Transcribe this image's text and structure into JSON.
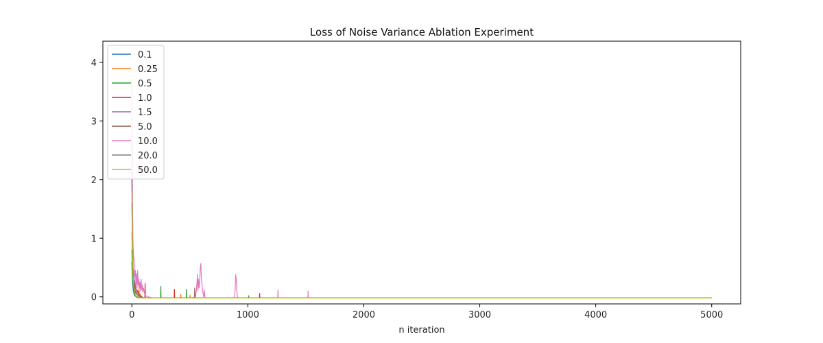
{
  "chart_data": {
    "type": "line",
    "title": "Loss of Noise Variance Ablation Experiment",
    "xlabel": "n iteration",
    "ylabel": "",
    "xlim": [
      -250,
      5250
    ],
    "ylim": [
      -0.12,
      4.36
    ],
    "xticks": [
      0,
      1000,
      2000,
      3000,
      4000,
      5000
    ],
    "yticks": [
      0,
      1,
      2,
      3,
      4
    ],
    "grid": false,
    "legend_position": "top-left",
    "series": [
      {
        "name": "0.1",
        "color": "#1f77b4",
        "x": [
          0,
          3,
          6,
          10,
          15,
          20,
          30,
          40,
          50,
          60,
          80,
          100,
          5000
        ],
        "y": [
          0.6,
          0.4,
          0.25,
          0.15,
          0.08,
          0.04,
          0.01,
          0.0,
          -0.01,
          -0.02,
          -0.02,
          -0.02,
          -0.02
        ]
      },
      {
        "name": "0.25",
        "color": "#ff7f0e",
        "x": [
          0,
          5,
          10,
          20,
          30,
          40,
          50,
          60,
          62,
          64,
          70,
          80,
          90,
          100,
          420,
          422,
          424,
          500,
          502,
          504,
          5000
        ],
        "y": [
          1.1,
          0.6,
          0.3,
          0.15,
          0.08,
          0.06,
          0.1,
          0.08,
          0.2,
          0.02,
          0.05,
          0.02,
          0.0,
          -0.02,
          -0.02,
          0.04,
          -0.02,
          -0.02,
          0.03,
          -0.02,
          -0.02
        ]
      },
      {
        "name": "0.5",
        "color": "#2ca02c",
        "x": [
          0,
          5,
          10,
          20,
          30,
          40,
          60,
          80,
          248,
          250,
          252,
          468,
          470,
          472,
          1005,
          1007,
          1009,
          5000
        ],
        "y": [
          0.8,
          0.4,
          0.2,
          0.08,
          0.02,
          -0.01,
          -0.02,
          -0.02,
          -0.02,
          0.18,
          -0.02,
          -0.02,
          0.13,
          -0.02,
          -0.02,
          0.02,
          -0.02,
          -0.02
        ]
      },
      {
        "name": "1.0",
        "color": "#d62728",
        "x": [
          0,
          5,
          10,
          20,
          30,
          40,
          50,
          60,
          70,
          80,
          100,
          112,
          114,
          116,
          365,
          367,
          369,
          1100,
          1102,
          1104,
          5000
        ],
        "y": [
          1.6,
          0.8,
          0.4,
          0.25,
          0.15,
          0.12,
          0.1,
          0.05,
          0.02,
          0.0,
          -0.02,
          -0.02,
          0.23,
          -0.02,
          -0.02,
          0.13,
          -0.02,
          -0.02,
          0.06,
          -0.02,
          -0.02
        ]
      },
      {
        "name": "1.5",
        "color": "#9467bd",
        "x": [
          0,
          5,
          10,
          20,
          30,
          40,
          60,
          80,
          100,
          5000
        ],
        "y": [
          2.8,
          1.2,
          0.5,
          0.3,
          0.2,
          0.1,
          0.03,
          0.0,
          -0.02,
          -0.02
        ]
      },
      {
        "name": "5.0",
        "color": "#8c564b",
        "x": [
          0,
          5,
          10,
          20,
          30,
          40,
          60,
          80,
          100,
          540,
          542,
          544,
          5000
        ],
        "y": [
          2.2,
          1.0,
          0.45,
          0.2,
          0.1,
          0.05,
          0.01,
          0.0,
          -0.02,
          -0.02,
          0.15,
          -0.02,
          -0.02
        ]
      },
      {
        "name": "10.0",
        "color": "#e377c2",
        "x": [
          0,
          3,
          6,
          10,
          15,
          20,
          25,
          30,
          35,
          40,
          45,
          50,
          55,
          60,
          65,
          70,
          75,
          80,
          85,
          90,
          95,
          100,
          110,
          120,
          140,
          160,
          200,
          250,
          300,
          400,
          500,
          550,
          560,
          565,
          570,
          575,
          580,
          585,
          590,
          595,
          600,
          605,
          610,
          615,
          620,
          625,
          630,
          640,
          660,
          700,
          800,
          880,
          890,
          895,
          900,
          905,
          910,
          920,
          950,
          1000,
          1200,
          1258,
          1260,
          1262,
          1500,
          1518,
          1520,
          1522,
          2000,
          3000,
          4000,
          5000
        ],
        "y": [
          3.7,
          2.4,
          1.5,
          0.9,
          0.7,
          0.6,
          0.35,
          0.45,
          0.2,
          0.4,
          0.15,
          0.45,
          0.2,
          0.3,
          0.15,
          0.25,
          0.1,
          0.3,
          0.12,
          0.2,
          0.08,
          0.15,
          0.05,
          0.02,
          0.0,
          -0.01,
          -0.02,
          -0.02,
          -0.02,
          -0.02,
          -0.02,
          0.0,
          0.2,
          0.38,
          0.1,
          0.3,
          0.15,
          0.25,
          0.5,
          0.57,
          0.3,
          0.2,
          0.1,
          0.05,
          0.0,
          0.12,
          -0.01,
          -0.02,
          -0.02,
          -0.02,
          -0.02,
          -0.02,
          0.1,
          0.38,
          0.3,
          0.1,
          0.0,
          -0.02,
          -0.02,
          -0.02,
          -0.02,
          -0.02,
          0.12,
          -0.02,
          -0.02,
          -0.02,
          0.1,
          -0.02,
          -0.02,
          -0.02,
          -0.02,
          -0.02
        ]
      },
      {
        "name": "20.0",
        "color": "#7f7f7f",
        "x": [
          0,
          5,
          10,
          20,
          30,
          40,
          60,
          80,
          5000
        ],
        "y": [
          2.0,
          0.9,
          0.4,
          0.15,
          0.05,
          0.01,
          -0.01,
          -0.02,
          -0.02
        ]
      },
      {
        "name": "50.0",
        "color": "#bcbd22",
        "x": [
          0,
          5,
          10,
          20,
          30,
          40,
          60,
          80,
          5000
        ],
        "y": [
          1.8,
          0.8,
          0.35,
          0.12,
          0.04,
          0.0,
          -0.02,
          -0.02,
          -0.02
        ]
      }
    ]
  }
}
